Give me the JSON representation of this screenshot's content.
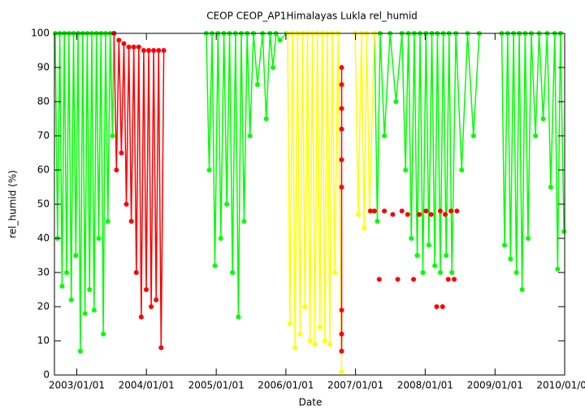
{
  "chart_data": {
    "type": "line",
    "title": "CEOP CEOP_AP1Himalayas Lukla  rel_humid",
    "xlabel": "Date",
    "ylabel": "rel_humid (%)",
    "xlim": [
      "2002/09/06",
      "2010/01/01"
    ],
    "xticks": [
      "2003/01/01",
      "2004/01/01",
      "2005/01/01",
      "2006/01/01",
      "2007/01/01",
      "2008/01/01",
      "2009/01/01",
      "2010/01/01"
    ],
    "ylim": [
      0,
      100
    ],
    "yticks": [
      0,
      10,
      20,
      30,
      40,
      50,
      60,
      70,
      80,
      90,
      100
    ],
    "grid": false,
    "series": [
      {
        "color": "#00ff00",
        "connect": true,
        "x": [
          "2002/09/10",
          "2002/09/22",
          "2002/10/04",
          "2002/10/16",
          "2002/10/28",
          "2002/11/09",
          "2002/11/21",
          "2002/12/03",
          "2002/12/15",
          "2002/12/27",
          "2003/01/08",
          "2003/01/20",
          "2003/02/01",
          "2003/02/13",
          "2003/02/25",
          "2003/03/09",
          "2003/03/21",
          "2003/04/02",
          "2003/04/14",
          "2003/04/26",
          "2003/05/08",
          "2003/05/20",
          "2003/06/01",
          "2003/06/13",
          "2003/06/25",
          "2003/07/07",
          "2003/07/15",
          "2004/06/01",
          "2004/11/10",
          "2004/11/25",
          "2004/12/10",
          "2004/12/25",
          "2005/01/10",
          "2005/01/25",
          "2005/02/10",
          "2005/02/25",
          "2005/03/12",
          "2005/03/27",
          "2005/04/12",
          "2005/04/27",
          "2005/05/12",
          "2005/05/27",
          "2005/06/12",
          "2005/06/27",
          "2005/07/15",
          "2005/08/05",
          "2005/09/01",
          "2005/09/20",
          "2005/10/10",
          "2005/10/25",
          "2005/11/10",
          "2005/12/01",
          "2006/01/05",
          "2006/06/01",
          "2007/04/10",
          "2007/04/25",
          "2007/05/10",
          "2007/06/01",
          "2007/07/01",
          "2007/08/01",
          "2007/09/01",
          "2007/09/20",
          "2007/10/05",
          "2007/10/20",
          "2007/11/05",
          "2007/11/20",
          "2007/12/05",
          "2007/12/20",
          "2008/01/05",
          "2008/01/20",
          "2008/02/05",
          "2008/02/20",
          "2008/03/05",
          "2008/03/20",
          "2008/04/05",
          "2008/04/20",
          "2008/05/05",
          "2008/05/20",
          "2008/06/10",
          "2008/07/10",
          "2008/08/10",
          "2008/09/10",
          "2008/10/10",
          "2008/12/01",
          "2009/02/05",
          "2009/02/20",
          "2009/03/08",
          "2009/03/23",
          "2009/04/08",
          "2009/04/23",
          "2009/05/08",
          "2009/05/23",
          "2009/06/08",
          "2009/06/23",
          "2009/07/10",
          "2009/08/01",
          "2009/08/20",
          "2009/09/10",
          "2009/10/01",
          "2009/10/20",
          "2009/11/10",
          "2009/11/25",
          "2009/12/10",
          "2009/12/28"
        ],
        "values": [
          100,
          40,
          100,
          26,
          100,
          30,
          100,
          22,
          100,
          35,
          100,
          7,
          100,
          18,
          100,
          25,
          100,
          19,
          100,
          40,
          100,
          12,
          100,
          45,
          100,
          70,
          100,
          null,
          100,
          60,
          100,
          32,
          100,
          40,
          100,
          50,
          100,
          30,
          100,
          17,
          100,
          45,
          100,
          70,
          100,
          85,
          100,
          75,
          100,
          90,
          100,
          98,
          100,
          null,
          100,
          45,
          100,
          70,
          100,
          80,
          100,
          60,
          100,
          40,
          100,
          35,
          100,
          30,
          100,
          38,
          100,
          32,
          100,
          30,
          100,
          35,
          100,
          30,
          100,
          60,
          100,
          70,
          100,
          null,
          100,
          38,
          100,
          34,
          100,
          30,
          100,
          25,
          100,
          40,
          100,
          70,
          100,
          75,
          100,
          55,
          100,
          31,
          100,
          42
        ]
      },
      {
        "color": "#ffff00",
        "connect": true,
        "x": [
          "2006/01/10",
          "2006/01/22",
          "2006/02/05",
          "2006/02/18",
          "2006/03/03",
          "2006/03/16",
          "2006/03/29",
          "2006/04/11",
          "2006/04/24",
          "2006/05/07",
          "2006/05/20",
          "2006/06/02",
          "2006/06/15",
          "2006/06/28",
          "2006/07/11",
          "2006/07/24",
          "2006/08/06",
          "2006/08/19",
          "2006/09/01",
          "2006/09/14",
          "2006/10/01",
          "2006/10/20",
          "2006/12/01",
          "2006/12/30",
          "2007/01/15",
          "2007/02/01",
          "2007/02/15",
          "2007/03/01",
          "2007/03/15",
          "2007/04/10"
        ],
        "values": [
          100,
          15,
          100,
          8,
          100,
          12,
          100,
          20,
          100,
          10,
          100,
          9,
          100,
          14,
          100,
          10,
          100,
          9,
          100,
          30,
          100,
          1,
          null,
          100,
          47,
          100,
          43,
          100,
          48,
          100
        ]
      },
      {
        "color": "#ff0000",
        "connect": true,
        "x": [
          "2003/07/15",
          "2003/07/28",
          "2003/08/10",
          "2003/08/23",
          "2003/09/05",
          "2003/09/18",
          "2003/10/01",
          "2003/10/14",
          "2003/10/27",
          "2003/11/09",
          "2003/11/22",
          "2003/12/05",
          "2003/12/18",
          "2003/12/31",
          "2004/01/13",
          "2004/01/26",
          "2004/02/08",
          "2004/02/21",
          "2004/03/05",
          "2004/03/18",
          "2004/04/01",
          "2004/06/01",
          "2006/10/20",
          "2006/10/20",
          "2006/10/20",
          "2006/10/20",
          "2006/10/20",
          "2006/10/20",
          "2006/10/20",
          "2006/10/20",
          "2006/10/20"
        ],
        "values": [
          100,
          60,
          98,
          65,
          97,
          50,
          96,
          45,
          96,
          30,
          96,
          17,
          95,
          25,
          95,
          20,
          95,
          22,
          95,
          8,
          95,
          null,
          90,
          85,
          78,
          72,
          63,
          55,
          19,
          12,
          7
        ]
      },
      {
        "color": "#ff0000",
        "connect": false,
        "x": [
          "2007/03/20",
          "2007/04/10",
          "2007/05/05",
          "2007/06/01",
          "2007/07/15",
          "2007/08/10",
          "2007/09/01",
          "2007/10/01",
          "2007/11/01",
          "2007/12/01",
          "2008/01/05",
          "2008/02/01",
          "2008/03/01",
          "2008/03/20",
          "2008/04/01",
          "2008/04/15",
          "2008/05/01",
          "2008/05/15",
          "2008/06/01",
          "2008/06/15"
        ],
        "values": [
          48,
          48,
          28,
          48,
          47,
          28,
          48,
          47,
          28,
          47,
          48,
          47,
          20,
          48,
          20,
          47,
          28,
          48,
          28,
          48
        ]
      }
    ]
  }
}
